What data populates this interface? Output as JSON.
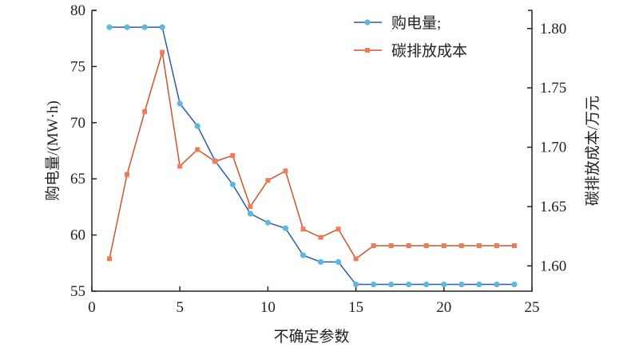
{
  "chart_data": {
    "type": "line",
    "title": "",
    "xlabel": "不确定参数",
    "ylabel_left": "购电量/(MW·h)",
    "ylabel_right": "碳排放成本/万元",
    "xlim": [
      0,
      25
    ],
    "ylim_left": [
      55,
      80
    ],
    "ylim_right": [
      1.5787,
      1.8153
    ],
    "x_ticks": [
      "0",
      "5",
      "10",
      "15",
      "20",
      "25"
    ],
    "y_left_ticks": [
      "55",
      "60",
      "65",
      "70",
      "75",
      "80"
    ],
    "y_right_ticks": [
      "1.60",
      "1.65",
      "1.70",
      "1.75",
      "1.80"
    ],
    "grid": false,
    "legend_position": "top-right",
    "x": [
      1,
      2,
      3,
      4,
      5,
      6,
      7,
      8,
      9,
      10,
      11,
      12,
      13,
      14,
      15,
      16,
      17,
      18,
      19,
      20,
      21,
      22,
      23,
      24
    ],
    "series": [
      {
        "name": "购电量;",
        "axis": "left",
        "color": "#2b5ca8",
        "marker_color": "#5bb8e0",
        "marker": "circle",
        "values": [
          78.5,
          78.5,
          78.5,
          78.5,
          71.7,
          69.7,
          66.6,
          64.5,
          61.9,
          61.1,
          60.6,
          58.2,
          57.6,
          57.6,
          55.6,
          55.6,
          55.6,
          55.6,
          55.6,
          55.6,
          55.6,
          55.6,
          55.6,
          55.6
        ]
      },
      {
        "name": "碳排放成本",
        "axis": "right",
        "color": "#d0532e",
        "marker_color": "#f07c55",
        "marker": "square",
        "values": [
          1.606,
          1.677,
          1.73,
          1.78,
          1.684,
          1.698,
          1.688,
          1.693,
          1.65,
          1.672,
          1.68,
          1.631,
          1.624,
          1.631,
          1.606,
          1.617,
          1.617,
          1.617,
          1.617,
          1.617,
          1.617,
          1.617,
          1.617,
          1.617
        ]
      }
    ]
  }
}
